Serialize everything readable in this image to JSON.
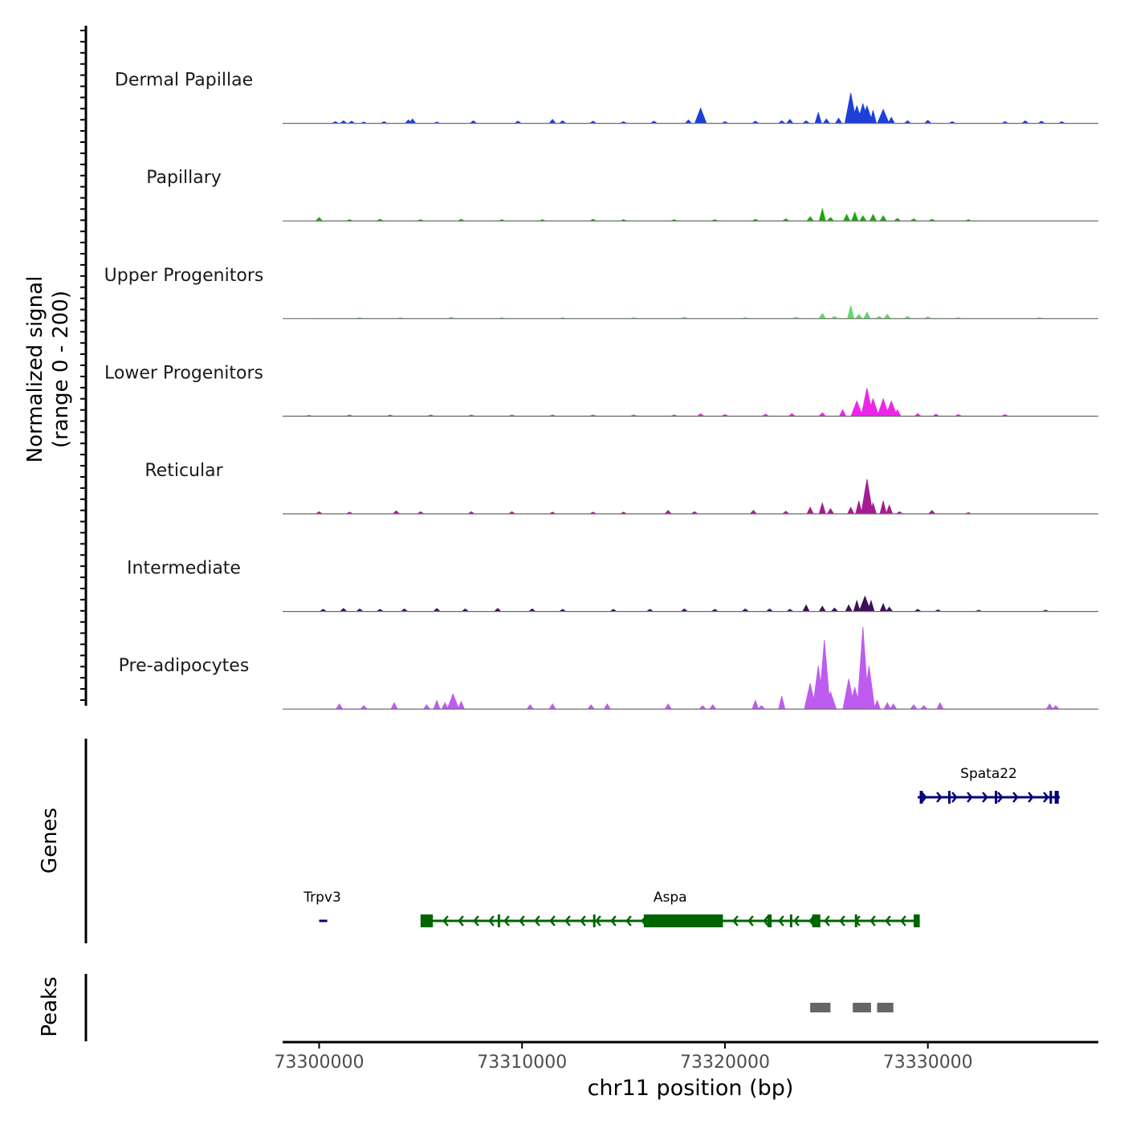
{
  "chart_data": {
    "type": "area",
    "title": "",
    "ylabel": [
      "Normalized signal",
      "(range 0 - 200)"
    ],
    "ylim": [
      0,
      200
    ],
    "xlabel": "chr11 position (bp)",
    "xlim": [
      73298200,
      73338400
    ],
    "xticks": [
      73300000,
      73310000,
      73320000,
      73330000
    ],
    "xtick_labels": [
      "73300000",
      "73310000",
      "73320000",
      "73330000"
    ],
    "tracks": [
      {
        "name": "Dermal Papillae",
        "color": "#1f3fd9",
        "points": [
          [
            73300800,
            4
          ],
          [
            73301200,
            6
          ],
          [
            73301600,
            5
          ],
          [
            73302200,
            3
          ],
          [
            73303200,
            4
          ],
          [
            73304400,
            8
          ],
          [
            73304600,
            10
          ],
          [
            73305800,
            3
          ],
          [
            73307600,
            6
          ],
          [
            73309800,
            5
          ],
          [
            73311500,
            9
          ],
          [
            73312000,
            6
          ],
          [
            73313500,
            5
          ],
          [
            73315000,
            4
          ],
          [
            73316500,
            5
          ],
          [
            73318200,
            8
          ],
          [
            73318800,
            35
          ],
          [
            73320000,
            4
          ],
          [
            73321500,
            5
          ],
          [
            73322800,
            6
          ],
          [
            73323200,
            9
          ],
          [
            73324000,
            6
          ],
          [
            73324600,
            25
          ],
          [
            73325000,
            10
          ],
          [
            73325600,
            12
          ],
          [
            73326200,
            70
          ],
          [
            73326500,
            40
          ],
          [
            73326800,
            45
          ],
          [
            73327000,
            40
          ],
          [
            73327300,
            30
          ],
          [
            73327800,
            32
          ],
          [
            73328200,
            14
          ],
          [
            73329000,
            6
          ],
          [
            73330000,
            7
          ],
          [
            73331200,
            4
          ],
          [
            73333800,
            4
          ],
          [
            73334800,
            6
          ],
          [
            73335600,
            5
          ],
          [
            73336600,
            4
          ]
        ]
      },
      {
        "name": "Papillary",
        "color": "#1aa80e",
        "points": [
          [
            73300000,
            8
          ],
          [
            73301500,
            3
          ],
          [
            73303000,
            4
          ],
          [
            73305000,
            3
          ],
          [
            73307000,
            4
          ],
          [
            73309000,
            3
          ],
          [
            73311000,
            3
          ],
          [
            73313500,
            4
          ],
          [
            73315000,
            3
          ],
          [
            73317500,
            3
          ],
          [
            73319500,
            3
          ],
          [
            73321500,
            4
          ],
          [
            73323000,
            5
          ],
          [
            73324200,
            10
          ],
          [
            73324800,
            28
          ],
          [
            73325200,
            8
          ],
          [
            73326000,
            15
          ],
          [
            73326400,
            20
          ],
          [
            73326800,
            12
          ],
          [
            73327300,
            15
          ],
          [
            73327800,
            12
          ],
          [
            73328500,
            6
          ],
          [
            73329300,
            5
          ],
          [
            73330200,
            4
          ],
          [
            73332000,
            3
          ]
        ]
      },
      {
        "name": "Upper Progenitors",
        "color": "#5fdc69",
        "points": [
          [
            73302000,
            2
          ],
          [
            73304000,
            2
          ],
          [
            73306500,
            3
          ],
          [
            73309000,
            2
          ],
          [
            73312000,
            2
          ],
          [
            73315500,
            2
          ],
          [
            73318000,
            3
          ],
          [
            73321000,
            2
          ],
          [
            73323500,
            3
          ],
          [
            73324800,
            12
          ],
          [
            73325400,
            5
          ],
          [
            73326200,
            30
          ],
          [
            73326600,
            10
          ],
          [
            73327000,
            15
          ],
          [
            73327600,
            5
          ],
          [
            73328000,
            10
          ],
          [
            73329000,
            5
          ],
          [
            73330000,
            4
          ],
          [
            73331500,
            2
          ],
          [
            73335500,
            2
          ]
        ]
      },
      {
        "name": "Lower Progenitors",
        "color": "#ee25e9",
        "points": [
          [
            73299500,
            2
          ],
          [
            73301500,
            3
          ],
          [
            73303500,
            3
          ],
          [
            73305500,
            3
          ],
          [
            73307500,
            3
          ],
          [
            73309500,
            3
          ],
          [
            73311500,
            3
          ],
          [
            73313500,
            3
          ],
          [
            73315500,
            3
          ],
          [
            73317500,
            3
          ],
          [
            73318800,
            6
          ],
          [
            73320000,
            4
          ],
          [
            73322000,
            5
          ],
          [
            73323300,
            6
          ],
          [
            73324800,
            8
          ],
          [
            73325800,
            15
          ],
          [
            73326500,
            35
          ],
          [
            73327000,
            65
          ],
          [
            73327300,
            40
          ],
          [
            73327800,
            40
          ],
          [
            73328200,
            35
          ],
          [
            73328500,
            15
          ],
          [
            73329500,
            6
          ],
          [
            73330400,
            5
          ],
          [
            73331500,
            4
          ],
          [
            73333800,
            4
          ]
        ]
      },
      {
        "name": "Reticular",
        "color": "#a51c92",
        "points": [
          [
            73300000,
            5
          ],
          [
            73301500,
            4
          ],
          [
            73303800,
            7
          ],
          [
            73305000,
            5
          ],
          [
            73307500,
            5
          ],
          [
            73309500,
            5
          ],
          [
            73311500,
            4
          ],
          [
            73313500,
            4
          ],
          [
            73315000,
            4
          ],
          [
            73317200,
            8
          ],
          [
            73318500,
            5
          ],
          [
            73321400,
            8
          ],
          [
            73323000,
            6
          ],
          [
            73324200,
            15
          ],
          [
            73324800,
            25
          ],
          [
            73325200,
            12
          ],
          [
            73326200,
            15
          ],
          [
            73326600,
            30
          ],
          [
            73327000,
            80
          ],
          [
            73327300,
            25
          ],
          [
            73327800,
            30
          ],
          [
            73328100,
            20
          ],
          [
            73328600,
            5
          ],
          [
            73330200,
            8
          ],
          [
            73332000,
            3
          ]
        ]
      },
      {
        "name": "Intermediate",
        "color": "#3d1058",
        "points": [
          [
            73300200,
            5
          ],
          [
            73301200,
            7
          ],
          [
            73302000,
            6
          ],
          [
            73303000,
            5
          ],
          [
            73304200,
            6
          ],
          [
            73305800,
            7
          ],
          [
            73307200,
            6
          ],
          [
            73308800,
            7
          ],
          [
            73310500,
            6
          ],
          [
            73312000,
            5
          ],
          [
            73314500,
            5
          ],
          [
            73316300,
            5
          ],
          [
            73318000,
            6
          ],
          [
            73319500,
            5
          ],
          [
            73321000,
            6
          ],
          [
            73322200,
            6
          ],
          [
            73323200,
            5
          ],
          [
            73324000,
            15
          ],
          [
            73324800,
            12
          ],
          [
            73325400,
            8
          ],
          [
            73326100,
            15
          ],
          [
            73326500,
            25
          ],
          [
            73326900,
            35
          ],
          [
            73327200,
            25
          ],
          [
            73327800,
            18
          ],
          [
            73328100,
            10
          ],
          [
            73329500,
            5
          ],
          [
            73330500,
            4
          ],
          [
            73332500,
            3
          ],
          [
            73335800,
            3
          ]
        ]
      },
      {
        "name": "Pre-adipocytes",
        "color": "#be5cef",
        "points": [
          [
            73301000,
            12
          ],
          [
            73302200,
            8
          ],
          [
            73303700,
            15
          ],
          [
            73305300,
            10
          ],
          [
            73305800,
            20
          ],
          [
            73306200,
            15
          ],
          [
            73306600,
            35
          ],
          [
            73307000,
            18
          ],
          [
            73310400,
            10
          ],
          [
            73311500,
            12
          ],
          [
            73313400,
            10
          ],
          [
            73314200,
            12
          ],
          [
            73317200,
            12
          ],
          [
            73318900,
            8
          ],
          [
            73319400,
            10
          ],
          [
            73321500,
            20
          ],
          [
            73321800,
            8
          ],
          [
            73322800,
            30
          ],
          [
            73324200,
            60
          ],
          [
            73324600,
            100
          ],
          [
            73324900,
            160
          ],
          [
            73325200,
            40
          ],
          [
            73326100,
            70
          ],
          [
            73326400,
            50
          ],
          [
            73326800,
            190
          ],
          [
            73327100,
            100
          ],
          [
            73327500,
            20
          ],
          [
            73328000,
            15
          ],
          [
            73328300,
            12
          ],
          [
            73329300,
            10
          ],
          [
            73329800,
            8
          ],
          [
            73330600,
            15
          ],
          [
            73336000,
            12
          ],
          [
            73336300,
            8
          ]
        ]
      }
    ],
    "genes": [
      {
        "name": "Spata22",
        "strand": "+",
        "color": "#00007a",
        "row": 0,
        "start": 73329500,
        "end": 73336500,
        "exons": [
          [
            73329600,
            73329750
          ],
          [
            73331000,
            73331100
          ],
          [
            73333300,
            73333400
          ],
          [
            73336000,
            73336100
          ],
          [
            73336250,
            73336450
          ]
        ]
      },
      {
        "name": "Trpv3",
        "strand": "+",
        "color": "#00007a",
        "row": 1,
        "start": 73300000,
        "end": 73300400,
        "exons": []
      },
      {
        "name": "Aspa",
        "strand": "-",
        "color": "#006400",
        "row": 1,
        "start": 73305000,
        "end": 73329600,
        "exons": [
          [
            73305000,
            73305600
          ],
          [
            73308800,
            73308900
          ],
          [
            73313500,
            73313600
          ],
          [
            73316000,
            73319900
          ],
          [
            73322100,
            73322300
          ],
          [
            73323200,
            73323300
          ],
          [
            73324300,
            73324700
          ],
          [
            73326400,
            73326500
          ],
          [
            73329300,
            73329600
          ]
        ]
      }
    ],
    "peaks": [
      [
        73324200,
        73325200
      ],
      [
        73326300,
        73327200
      ],
      [
        73327500,
        73328300
      ]
    ],
    "panels": [
      "Genes",
      "Peaks"
    ]
  }
}
